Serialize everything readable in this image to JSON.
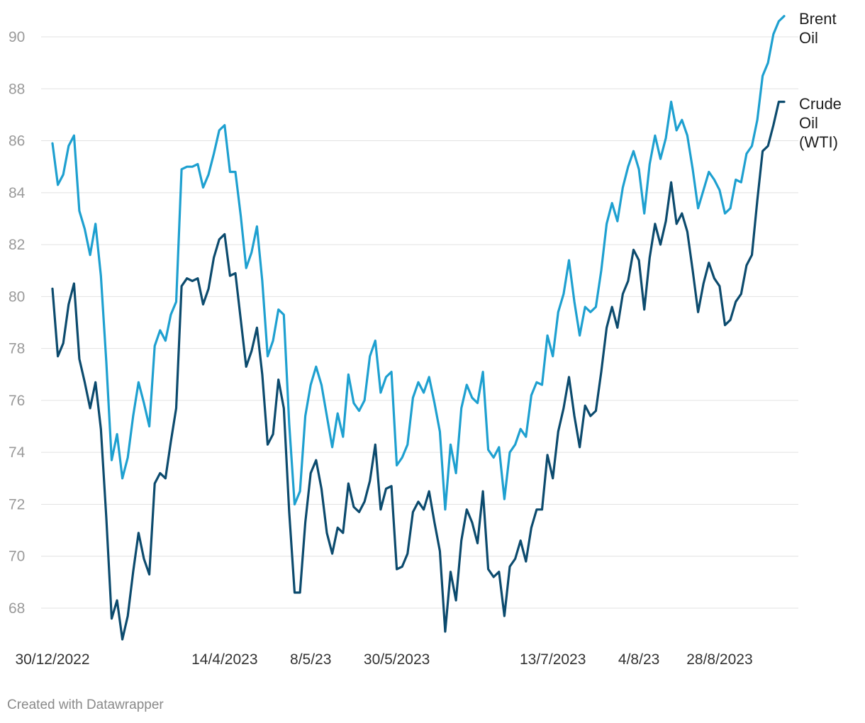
{
  "footer": "Created with Datawrapper",
  "chart_data": {
    "type": "line",
    "title": "",
    "xlabel": "",
    "ylabel": "",
    "ylim": [
      67,
      91
    ],
    "yticks": [
      68,
      70,
      72,
      74,
      76,
      78,
      80,
      82,
      84,
      86,
      88,
      90
    ],
    "xticks": [
      {
        "label": "30/12/2022",
        "index": 0
      },
      {
        "label": "14/4/2023",
        "index": 32
      },
      {
        "label": "8/5/23",
        "index": 48
      },
      {
        "label": "30/5/2023",
        "index": 64
      },
      {
        "label": "13/7/2023",
        "index": 93
      },
      {
        "label": "4/8/23",
        "index": 109
      },
      {
        "label": "28/8/2023",
        "index": 124
      }
    ],
    "grid": true,
    "legend": "inline labels at line ends (right)",
    "series": [
      {
        "name": "Brent Oil",
        "label_lines": [
          "Brent",
          "Oil"
        ],
        "color": "#1ea0d0",
        "values": [
          85.9,
          84.3,
          84.7,
          85.8,
          86.2,
          83.3,
          82.6,
          81.6,
          82.8,
          80.8,
          77.5,
          73.7,
          74.7,
          73.0,
          73.8,
          75.4,
          76.7,
          75.9,
          75.0,
          78.1,
          78.7,
          78.3,
          79.3,
          79.8,
          84.9,
          85.0,
          85.0,
          85.1,
          84.2,
          84.7,
          85.5,
          86.4,
          86.6,
          84.8,
          84.8,
          83.1,
          81.1,
          81.7,
          82.7,
          80.6,
          77.7,
          78.3,
          79.5,
          79.3,
          75.1,
          72.0,
          72.5,
          75.4,
          76.6,
          77.3,
          76.6,
          75.4,
          74.2,
          75.5,
          74.6,
          77.0,
          75.9,
          75.6,
          76.0,
          77.7,
          78.3,
          76.3,
          76.9,
          77.1,
          73.5,
          73.8,
          74.3,
          76.1,
          76.7,
          76.3,
          76.9,
          75.9,
          74.8,
          71.8,
          74.3,
          73.2,
          75.7,
          76.6,
          76.1,
          75.9,
          77.1,
          74.1,
          73.8,
          74.2,
          72.2,
          74.0,
          74.3,
          74.9,
          74.6,
          76.2,
          76.7,
          76.6,
          78.5,
          77.7,
          79.4,
          80.1,
          81.4,
          79.8,
          78.5,
          79.6,
          79.4,
          79.6,
          81.0,
          82.8,
          83.6,
          82.9,
          84.2,
          85.0,
          85.6,
          84.9,
          83.2,
          85.1,
          86.2,
          85.3,
          86.1,
          87.5,
          86.4,
          86.8,
          86.2,
          84.9,
          83.4,
          84.1,
          84.8,
          84.5,
          84.1,
          83.2,
          83.4,
          84.5,
          84.4,
          85.5,
          85.8,
          86.8,
          88.5,
          89.0,
          90.1,
          90.6,
          90.8
        ]
      },
      {
        "name": "Crude Oil (WTI)",
        "label_lines": [
          "Crude",
          "Oil",
          "(WTI)"
        ],
        "color": "#0c4b6e",
        "values": [
          80.3,
          77.7,
          78.2,
          79.7,
          80.5,
          77.6,
          76.7,
          75.7,
          76.7,
          74.9,
          71.5,
          67.6,
          68.3,
          66.8,
          67.7,
          69.4,
          70.9,
          69.9,
          69.3,
          72.8,
          73.2,
          73.0,
          74.4,
          75.7,
          80.4,
          80.7,
          80.6,
          80.7,
          79.7,
          80.3,
          81.5,
          82.2,
          82.4,
          80.8,
          80.9,
          79.1,
          77.3,
          77.9,
          78.8,
          77.0,
          74.3,
          74.7,
          76.8,
          75.7,
          71.7,
          68.6,
          68.6,
          71.3,
          73.2,
          73.7,
          72.6,
          70.9,
          70.1,
          71.1,
          70.9,
          72.8,
          71.9,
          71.7,
          72.1,
          72.9,
          74.3,
          71.8,
          72.6,
          72.7,
          69.5,
          69.6,
          70.1,
          71.7,
          72.1,
          71.8,
          72.5,
          71.3,
          70.2,
          67.1,
          69.4,
          68.3,
          70.6,
          71.8,
          71.3,
          70.5,
          72.5,
          69.5,
          69.2,
          69.4,
          67.7,
          69.6,
          69.9,
          70.6,
          69.8,
          71.1,
          71.8,
          71.8,
          73.9,
          73.0,
          74.8,
          75.7,
          76.9,
          75.4,
          74.2,
          75.8,
          75.4,
          75.6,
          77.1,
          78.8,
          79.6,
          78.8,
          80.1,
          80.6,
          81.8,
          81.4,
          79.5,
          81.5,
          82.8,
          82.0,
          82.9,
          84.4,
          82.8,
          83.2,
          82.5,
          81.0,
          79.4,
          80.5,
          81.3,
          80.7,
          80.4,
          78.9,
          79.1,
          79.8,
          80.1,
          81.2,
          81.6,
          83.7,
          85.6,
          85.8,
          86.6,
          87.5,
          87.5
        ]
      }
    ]
  }
}
